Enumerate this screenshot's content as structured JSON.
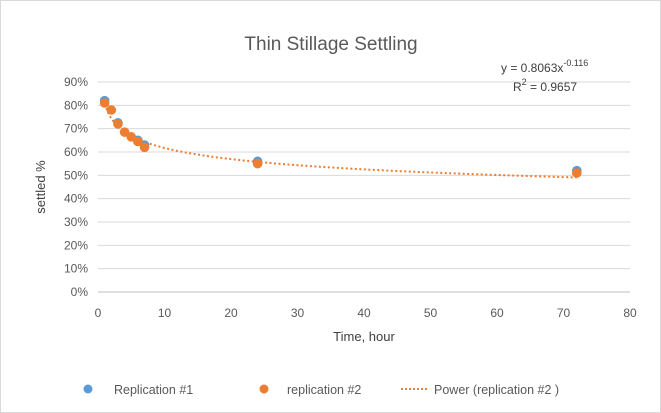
{
  "chart_data": {
    "type": "scatter",
    "title": "Thin Stillage Settling",
    "xlabel": "Time, hour",
    "ylabel": "settled %",
    "xlim": [
      0,
      80
    ],
    "ylim": [
      0,
      0.9
    ],
    "x_ticks": [
      "0",
      "10",
      "20",
      "30",
      "40",
      "50",
      "60",
      "70",
      "80"
    ],
    "x_tick_values": [
      0,
      10,
      20,
      30,
      40,
      50,
      60,
      70,
      80
    ],
    "y_ticks": [
      "0%",
      "10%",
      "20%",
      "30%",
      "40%",
      "50%",
      "60%",
      "70%",
      "80%",
      "90%"
    ],
    "y_tick_values": [
      0,
      0.1,
      0.2,
      0.3,
      0.4,
      0.5,
      0.6,
      0.7,
      0.8,
      0.9
    ],
    "grid": "horizontal",
    "legend_position": "bottom",
    "series": [
      {
        "name": "Replication #1",
        "color": "#5b9bd5",
        "points": [
          [
            1,
            0.82
          ],
          [
            3,
            0.725
          ],
          [
            6,
            0.65
          ],
          [
            7,
            0.63
          ],
          [
            24,
            0.56
          ],
          [
            72,
            0.52
          ]
        ]
      },
      {
        "name": "replication #2",
        "color": "#ed7d31",
        "points": [
          [
            1,
            0.81
          ],
          [
            2,
            0.78
          ],
          [
            3,
            0.72
          ],
          [
            4,
            0.685
          ],
          [
            5,
            0.665
          ],
          [
            6,
            0.645
          ],
          [
            7,
            0.62
          ],
          [
            24,
            0.55
          ],
          [
            72,
            0.51
          ]
        ]
      }
    ],
    "trendline": {
      "name": "Power (replication #2 )",
      "color": "#ed7d31",
      "style": "dotted",
      "coef": 0.8063,
      "exponent": -0.116,
      "x_range": [
        1,
        72
      ],
      "equation_prefix": "y = 0.8063x",
      "equation_exponent": "-0.116",
      "r2_prefix": "R",
      "r2_sup": "2",
      "r2_suffix": " = 0.9657"
    }
  }
}
